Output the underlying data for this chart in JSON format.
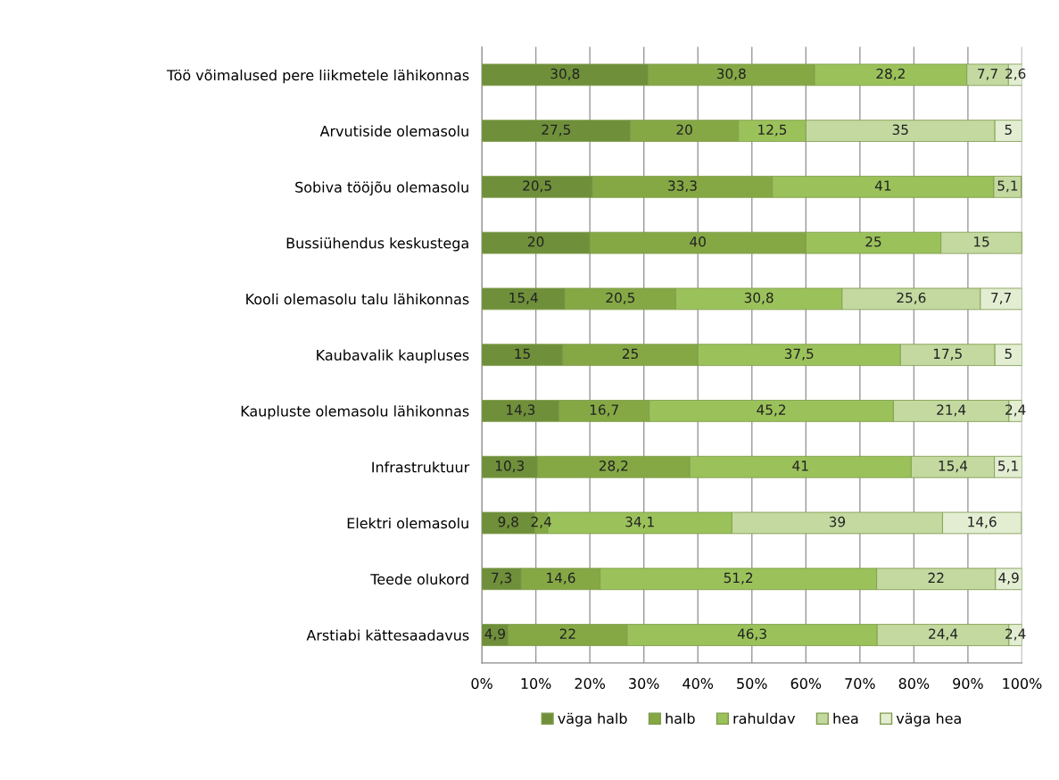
{
  "chart_data": {
    "type": "bar",
    "orientation": "horizontal",
    "stacked": true,
    "categories": [
      "Töö võimalused pere liikmetele lähikonnas",
      "Arvutiside olemasolu",
      "Sobiva tööjõu olemasolu",
      "Bussiühendus keskustega",
      "Kooli olemasolu talu lähikonnas",
      "Kaubavalik kaupluses",
      "Kaupluste olemasolu lähikonnas",
      "Infrastruktuur",
      "Elektri olemasolu",
      "Teede olukord",
      "Arstiabi kättesaadavus"
    ],
    "series": [
      {
        "name": "väga halb",
        "color": "#6f8f3a",
        "values": [
          30.8,
          27.5,
          20.5,
          20,
          15.4,
          15,
          14.3,
          10.3,
          9.8,
          7.3,
          4.9
        ],
        "value_labels": [
          "30,8",
          "27,5",
          "20,5",
          "20",
          "15,4",
          "15",
          "14,3",
          "10,3",
          "9,8",
          "7,3",
          "4,9"
        ]
      },
      {
        "name": "halb",
        "color": "#85a845",
        "values": [
          30.8,
          20,
          33.3,
          40,
          20.5,
          25,
          16.7,
          28.2,
          2.4,
          14.6,
          22
        ],
        "value_labels": [
          "30,8",
          "20",
          "33,3",
          "40",
          "20,5",
          "25",
          "16,7",
          "28,2",
          "2,4",
          "14,6",
          "22"
        ]
      },
      {
        "name": "rahuldav",
        "color": "#9bc25a",
        "values": [
          28.2,
          12.5,
          41,
          25,
          30.8,
          37.5,
          45.2,
          41,
          34.1,
          51.2,
          46.3
        ],
        "value_labels": [
          "28,2",
          "12,5",
          "41",
          "25",
          "30,8",
          "37,5",
          "45,2",
          "41",
          "34,1",
          "51,2",
          "46,3"
        ]
      },
      {
        "name": "hea",
        "color": "#c3d9a0",
        "values": [
          7.7,
          35,
          5.1,
          15,
          25.6,
          17.5,
          21.4,
          15.4,
          39,
          22,
          24.4
        ],
        "value_labels": [
          "7,7",
          "35",
          "5,1",
          "15",
          "25,6",
          "17,5",
          "21,4",
          "15,4",
          "39",
          "22",
          "24,4"
        ]
      },
      {
        "name": "väga hea",
        "color": "#e2edd2",
        "values": [
          2.6,
          5,
          null,
          null,
          7.7,
          5,
          2.4,
          5.1,
          14.6,
          4.9,
          2.4
        ],
        "value_labels": [
          "2,6",
          "5",
          null,
          null,
          "7,7",
          "5",
          "2,4",
          "5,1",
          "14,6",
          "4,9",
          "2,4"
        ]
      }
    ],
    "xlim": [
      0,
      100
    ],
    "xticks": [
      {
        "value": 0,
        "label": "0%"
      },
      {
        "value": 10,
        "label": "10%"
      },
      {
        "value": 20,
        "label": "20%"
      },
      {
        "value": 30,
        "label": "30%"
      },
      {
        "value": 40,
        "label": "40%"
      },
      {
        "value": 50,
        "label": "50%"
      },
      {
        "value": 60,
        "label": "60%"
      },
      {
        "value": 70,
        "label": "70%"
      },
      {
        "value": 80,
        "label": "80%"
      },
      {
        "value": 90,
        "label": "90%"
      },
      {
        "value": 100,
        "label": "100%"
      }
    ],
    "grid": "x",
    "legend": "bottom"
  }
}
